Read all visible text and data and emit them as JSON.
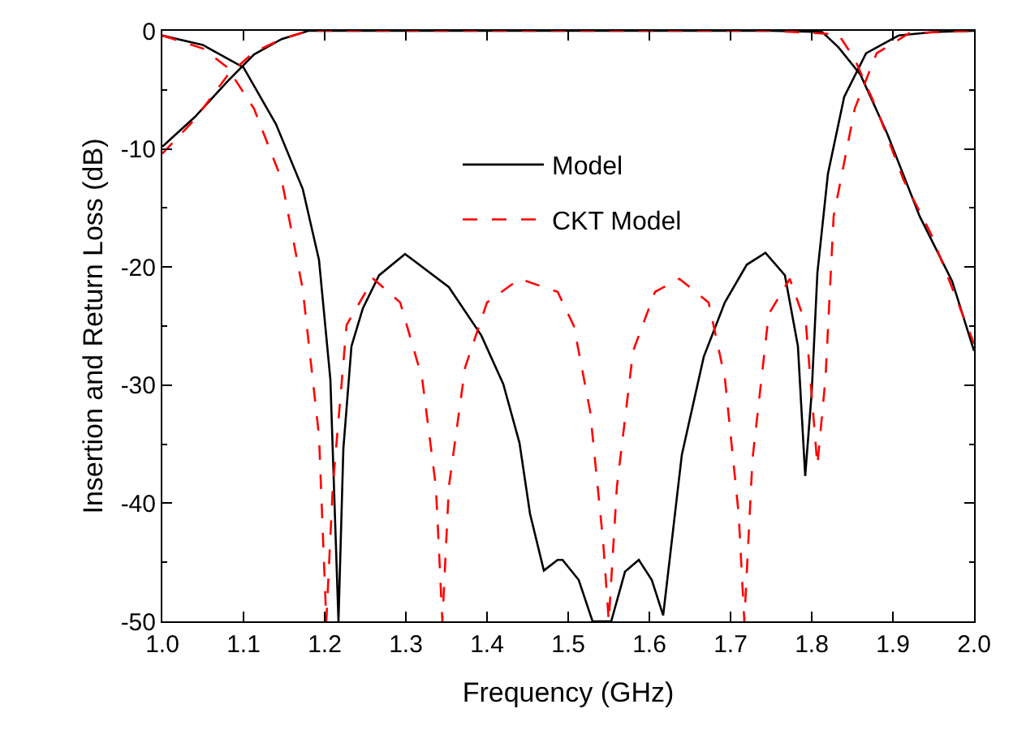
{
  "chart_data": {
    "type": "line",
    "xlabel": "Frequency (GHz)",
    "ylabel": "Insertion and Return Loss (dB)",
    "xlim": [
      1.0,
      2.0
    ],
    "xticks": [
      {
        "value": 1.0,
        "label": "1.0"
      },
      1.1,
      1.2,
      1.3,
      1.4,
      1.5,
      1.6,
      1.7,
      1.8,
      1.9,
      {
        "value": 2.0,
        "label": "2.0"
      }
    ],
    "ylim": [
      -50,
      0
    ],
    "yticks": [
      -50,
      -40,
      -30,
      -20,
      -10,
      0
    ],
    "legend": "top",
    "marker": "none",
    "series": [
      {
        "name": "Model",
        "color": "#000000",
        "line_style": "solid",
        "x": [
          1.0,
          1.04,
          1.08,
          1.113,
          1.147,
          1.18,
          1.25,
          1.5,
          1.75,
          1.813,
          1.833,
          1.86,
          1.893,
          1.933,
          1.973,
          2.0
        ],
        "values": [
          -9.8,
          -7.3,
          -4.3,
          -2.0,
          -0.7,
          0,
          0,
          0,
          0,
          -0.1,
          -1.4,
          -3.7,
          -8.7,
          -15.7,
          -21.2,
          -27.1
        ]
      },
      {
        "color": "#000000",
        "line_style": "solid",
        "x": [
          1.0,
          1.05,
          1.1,
          1.14,
          1.173,
          1.193,
          1.207,
          1.217,
          1.223,
          1.233,
          1.247,
          1.267,
          1.299,
          1.353,
          1.393,
          1.42,
          1.44,
          1.453,
          1.47,
          1.487,
          1.493,
          1.513,
          1.53,
          1.553,
          1.57,
          1.587,
          1.603,
          1.617,
          1.64,
          1.667,
          1.693,
          1.72,
          1.743,
          1.767,
          1.783,
          1.792,
          1.8,
          1.807,
          1.82,
          1.84,
          1.867,
          1.907,
          1.95,
          2.0
        ],
        "values": [
          -0.4,
          -1.2,
          -3.1,
          -7.9,
          -13.4,
          -19.4,
          -29.5,
          -50,
          -35.4,
          -26.7,
          -23.5,
          -20.7,
          -18.9,
          -21.7,
          -25.8,
          -29.9,
          -34.9,
          -40.9,
          -45.7,
          -44.8,
          -44.8,
          -46.5,
          -50,
          -50,
          -45.8,
          -44.8,
          -46.5,
          -49.5,
          -35.9,
          -27.6,
          -23.0,
          -19.8,
          -18.8,
          -20.7,
          -26.7,
          -37.7,
          -30.6,
          -20.5,
          -12.1,
          -5.6,
          -1.9,
          -0.4,
          -0.1,
          0
        ]
      },
      {
        "name": "CKT Model",
        "color": "#ff0000",
        "line_style": "dashed",
        "x": [
          1.0,
          1.04,
          1.08,
          1.113,
          1.147,
          1.18,
          1.25,
          1.5,
          1.75,
          1.833,
          1.853,
          1.88,
          1.913,
          1.947,
          2.0
        ],
        "values": [
          -10.4,
          -7.5,
          -3.8,
          -1.8,
          -0.7,
          0,
          0,
          0,
          0,
          -0.3,
          -2.4,
          -6.6,
          -12.6,
          -17.2,
          -26.5
        ]
      },
      {
        "color": "#ff0000",
        "line_style": "dashed",
        "x": [
          1.0,
          1.05,
          1.08,
          1.113,
          1.147,
          1.173,
          1.193,
          1.202,
          1.21,
          1.227,
          1.26,
          1.293,
          1.32,
          1.337,
          1.345,
          1.353,
          1.373,
          1.4,
          1.44,
          1.487,
          1.507,
          1.527,
          1.543,
          1.55,
          1.56,
          1.58,
          1.607,
          1.637,
          1.673,
          1.693,
          1.71,
          1.717,
          1.727,
          1.747,
          1.773,
          1.793,
          1.807,
          1.817,
          1.827,
          1.853,
          1.88,
          1.92,
          2.0
        ],
        "values": [
          -0.4,
          -1.5,
          -3.1,
          -6.6,
          -12.6,
          -21.9,
          -34.3,
          -50,
          -38.6,
          -24.9,
          -21.0,
          -23.0,
          -29.4,
          -38.6,
          -50,
          -38.6,
          -28.5,
          -23.0,
          -21.0,
          -22.1,
          -25.0,
          -32.2,
          -43.2,
          -50,
          -38.6,
          -27.1,
          -22.1,
          -21.0,
          -23.0,
          -29.4,
          -40.9,
          -50,
          -36.3,
          -24.0,
          -21.0,
          -24.9,
          -36.8,
          -29.4,
          -15.7,
          -6.6,
          -1.9,
          -0.2,
          0
        ]
      }
    ]
  }
}
